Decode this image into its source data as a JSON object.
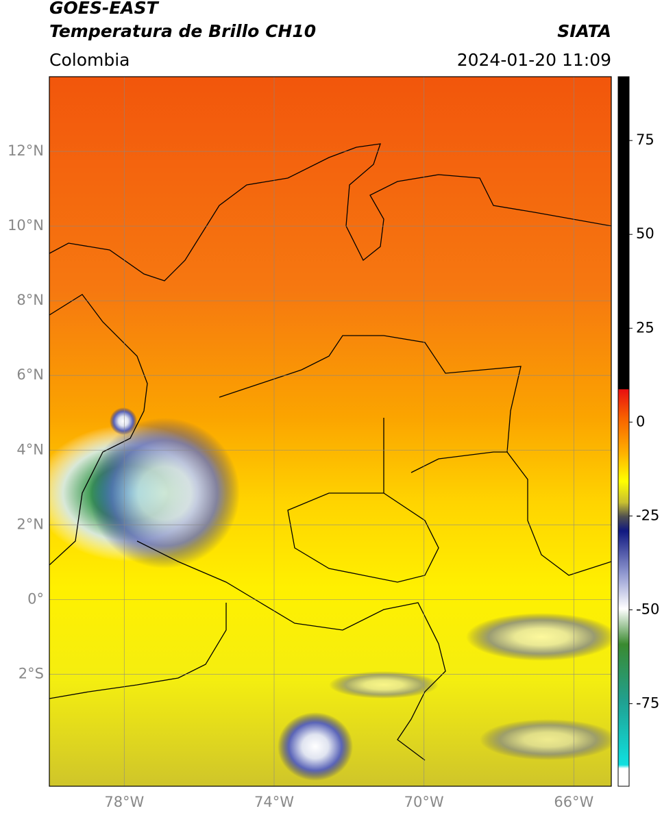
{
  "header": {
    "satellite": "GOES-EAST",
    "product": "Temperatura de Brillo CH10",
    "region": "Colombia",
    "source": "SIATA",
    "datetime": "2024-01-20 11:09"
  },
  "map": {
    "xlim": [
      -80,
      -65
    ],
    "ylim": [
      -5,
      14
    ],
    "xticks": [
      {
        "value": -78,
        "label": "78°W"
      },
      {
        "value": -74,
        "label": "74°W"
      },
      {
        "value": -70,
        "label": "70°W"
      },
      {
        "value": -66,
        "label": "66°W"
      }
    ],
    "yticks": [
      {
        "value": 12,
        "label": "12°N"
      },
      {
        "value": 10,
        "label": "10°N"
      },
      {
        "value": 8,
        "label": "8°N"
      },
      {
        "value": 6,
        "label": "6°N"
      },
      {
        "value": 4,
        "label": "4°N"
      },
      {
        "value": 2,
        "label": "2°N"
      },
      {
        "value": 0,
        "label": "0°"
      },
      {
        "value": -2,
        "label": "2°S"
      }
    ],
    "grid": true
  },
  "colorbar": {
    "lim": [
      -97,
      92
    ],
    "ticks": [
      75,
      50,
      25,
      0,
      -25,
      -50,
      -75
    ]
  }
}
